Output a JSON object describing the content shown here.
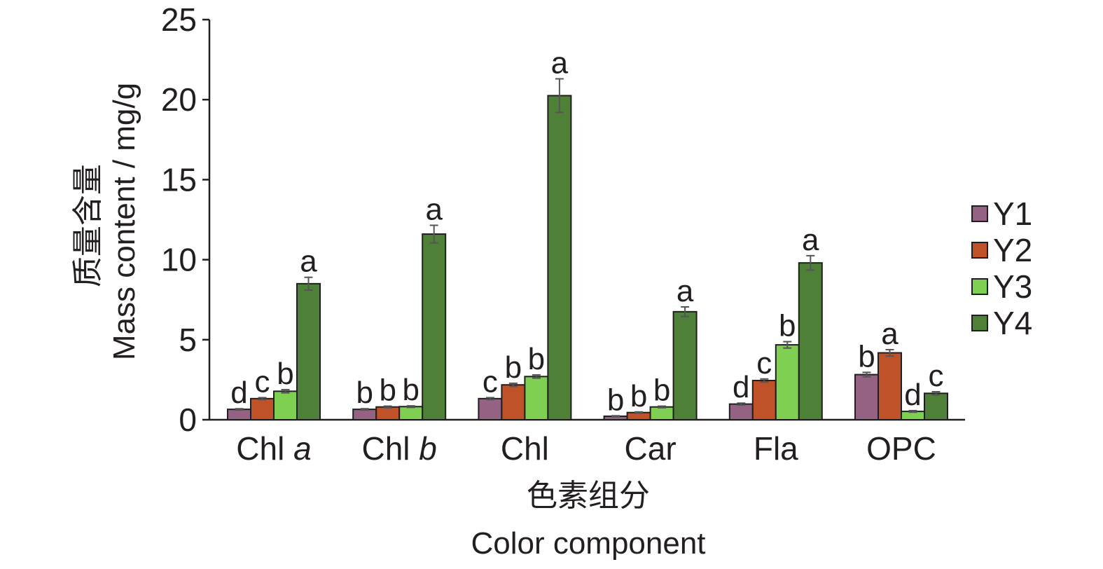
{
  "chart_data": {
    "type": "bar",
    "categories": [
      "Chl a",
      "Chl b",
      "Chl",
      "Car",
      "Fla",
      "OPC"
    ],
    "category_labels": [
      {
        "main": "Chl ",
        "italic": "a"
      },
      {
        "main": "Chl ",
        "italic": "b"
      },
      {
        "main": "Chl",
        "italic": ""
      },
      {
        "main": "Car",
        "italic": ""
      },
      {
        "main": "Fla",
        "italic": ""
      },
      {
        "main": "OPC",
        "italic": ""
      }
    ],
    "series": [
      {
        "name": "Y1",
        "color": "#946283",
        "values": [
          0.65,
          0.65,
          1.32,
          0.22,
          0.98,
          2.82
        ],
        "errors": [
          0.04,
          0.04,
          0.06,
          0.03,
          0.06,
          0.14
        ],
        "letters": [
          "d",
          "b",
          "c",
          "b",
          "d",
          "b"
        ]
      },
      {
        "name": "Y2",
        "color": "#c0522a",
        "values": [
          1.32,
          0.8,
          2.18,
          0.45,
          2.45,
          4.18
        ],
        "errors": [
          0.06,
          0.05,
          0.1,
          0.04,
          0.1,
          0.2
        ],
        "letters": [
          "c",
          "b",
          "b",
          "b",
          "c",
          "a"
        ]
      },
      {
        "name": "Y3",
        "color": "#7fcf52",
        "values": [
          1.78,
          0.82,
          2.7,
          0.8,
          4.68,
          0.52
        ],
        "errors": [
          0.1,
          0.05,
          0.1,
          0.05,
          0.2,
          0.05
        ],
        "letters": [
          "b",
          "b",
          "b",
          "b",
          "b",
          "d"
        ]
      },
      {
        "name": "Y4",
        "color": "#4e8137",
        "values": [
          8.5,
          11.6,
          20.25,
          6.75,
          9.8,
          1.65
        ],
        "errors": [
          0.4,
          0.55,
          1.05,
          0.3,
          0.45,
          0.1
        ],
        "letters": [
          "a",
          "a",
          "a",
          "a",
          "a",
          "c"
        ]
      }
    ],
    "ylabel": [
      "质量含量",
      "Mass content / mg/g"
    ],
    "xlabel": [
      "色素组分",
      "Color component"
    ],
    "ylim": [
      0,
      25
    ],
    "yticks": [
      0,
      5,
      10,
      15,
      20,
      25
    ],
    "grid": false,
    "legend_position": "right",
    "error_bar_color": "#555555"
  }
}
